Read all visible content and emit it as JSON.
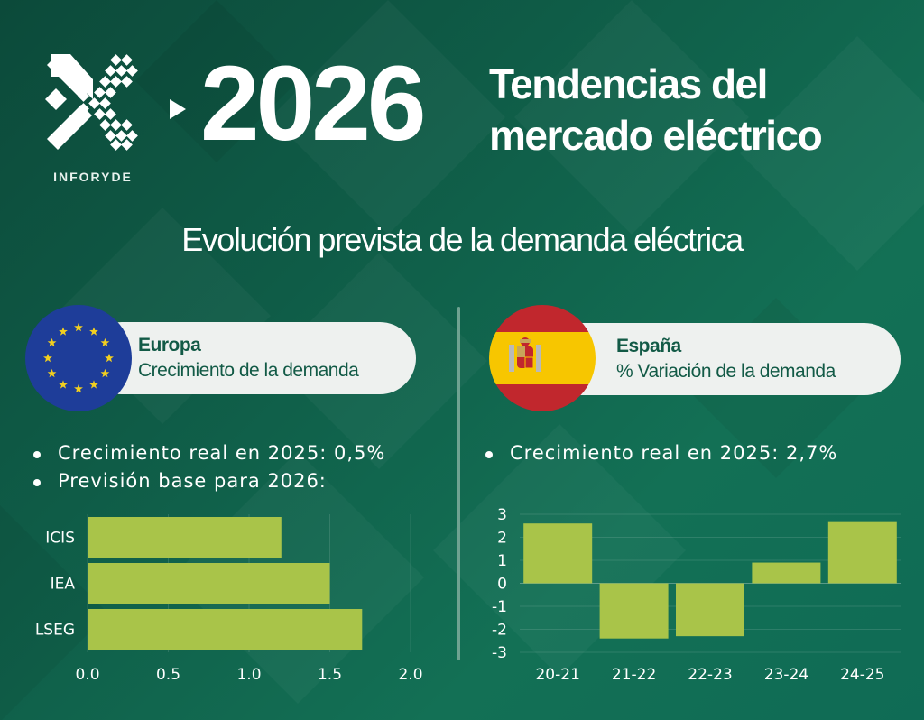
{
  "brand": {
    "name": "INFORYDE"
  },
  "header": {
    "year": "2026",
    "title_line1": "Tendencias del",
    "title_line2": "mercado eléctrico"
  },
  "subtitle": "Evolución prevista de la demanda eléctrica",
  "europe": {
    "title": "Europa",
    "subtitle": "Crecimiento de la demanda",
    "bullets": [
      "Crecimiento real en 2025: 0,5%",
      "Previsión base para 2026:"
    ]
  },
  "spain": {
    "title": "España",
    "subtitle": "% Variación de la demanda",
    "bullets": [
      "Crecimiento real en 2025: 2,7%"
    ]
  },
  "colors": {
    "bar": "#a9c449",
    "pill": "#eef1ef",
    "text_dark": "#125a46",
    "eu_blue": "#1e3d99",
    "eu_star": "#f2cf1f",
    "es_red": "#c1272d",
    "es_yellow": "#f7c600"
  },
  "chart_data": [
    {
      "type": "bar",
      "orientation": "horizontal",
      "categories": [
        "ICIS",
        "IEA",
        "LSEG"
      ],
      "values": [
        1.2,
        1.5,
        1.7
      ],
      "xlim": [
        0,
        2.0
      ],
      "xticks": [
        "0.0",
        "0.5",
        "1.0",
        "1.5",
        "2.0"
      ],
      "grid": true
    },
    {
      "type": "bar",
      "orientation": "vertical",
      "categories": [
        "20-21",
        "21-22",
        "22-23",
        "23-24",
        "24-25"
      ],
      "values": [
        2.6,
        -2.4,
        -2.3,
        0.9,
        2.7
      ],
      "ylim": [
        -3,
        3
      ],
      "yticks": [
        "3",
        "2",
        "1",
        "0",
        "-1",
        "-2",
        "-3"
      ],
      "grid": true
    }
  ]
}
